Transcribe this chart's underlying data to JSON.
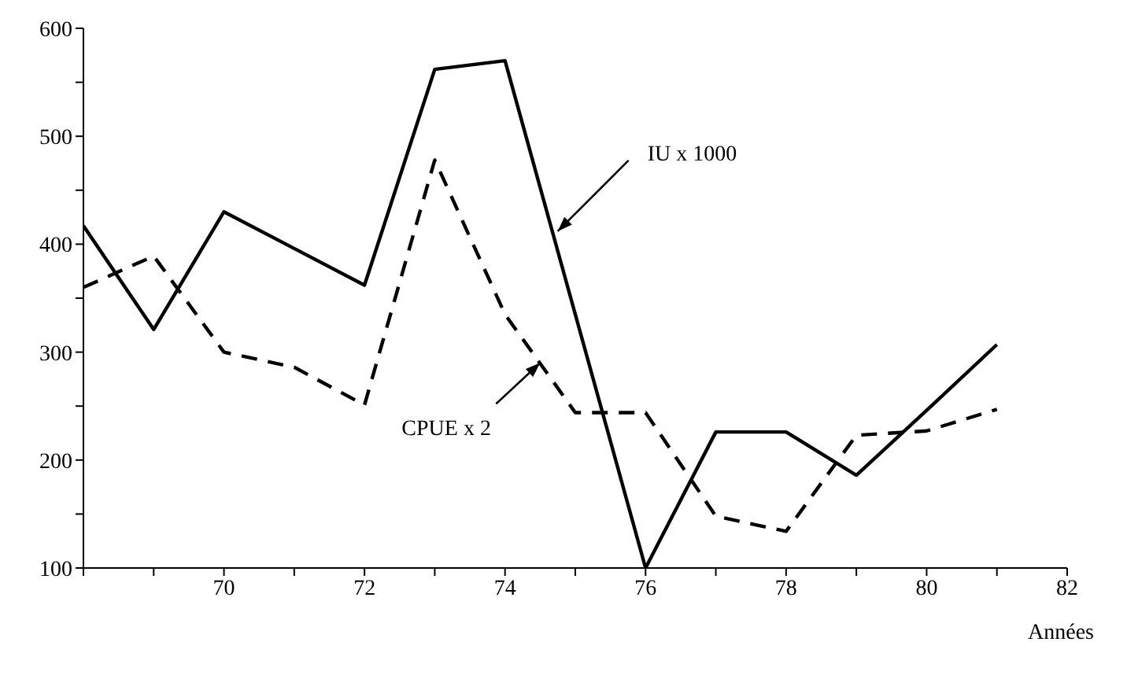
{
  "chart_data": {
    "type": "line",
    "xlabel": "Années",
    "x": [
      68,
      69,
      70,
      71,
      72,
      73,
      74,
      75,
      76,
      77,
      78,
      79,
      80,
      81
    ],
    "series": [
      {
        "color": "#000000",
        "line_style": "solid",
        "values": [
          417,
          321,
          430,
          396,
          362,
          562,
          570,
          335,
          100,
          226,
          226,
          186,
          246,
          307
        ]
      },
      {
        "color": "#000000",
        "line_style": "dashed",
        "values": [
          360,
          389,
          300,
          286,
          251,
          478,
          335,
          244,
          244,
          148,
          134,
          223,
          227,
          247
        ]
      }
    ],
    "xlim": [
      68,
      82
    ],
    "ylim": [
      100,
      600
    ],
    "xticks": [
      {
        "value": 68,
        "label": null
      },
      {
        "value": 69,
        "label": null
      },
      70,
      {
        "value": 71,
        "label": null
      },
      72,
      {
        "value": 73,
        "label": null
      },
      74,
      {
        "value": 75,
        "label": null
      },
      76,
      {
        "value": 77,
        "label": null
      },
      78,
      {
        "value": 79,
        "label": null
      },
      80,
      {
        "value": 81,
        "label": null
      },
      82
    ],
    "yticks": [
      100,
      {
        "value": 150,
        "label": null
      },
      200,
      {
        "value": 250,
        "label": null
      },
      300,
      {
        "value": 350,
        "label": null
      },
      400,
      {
        "value": 450,
        "label": null
      },
      500,
      {
        "value": 550,
        "label": null
      },
      600
    ],
    "annotations": [
      {
        "text": "IU x 1000",
        "x": 74.75,
        "y": 412
      },
      {
        "text": "CPUE x 2",
        "x": 74.5,
        "y": 290
      }
    ],
    "grid": false,
    "legend": false,
    "marker": "none"
  }
}
